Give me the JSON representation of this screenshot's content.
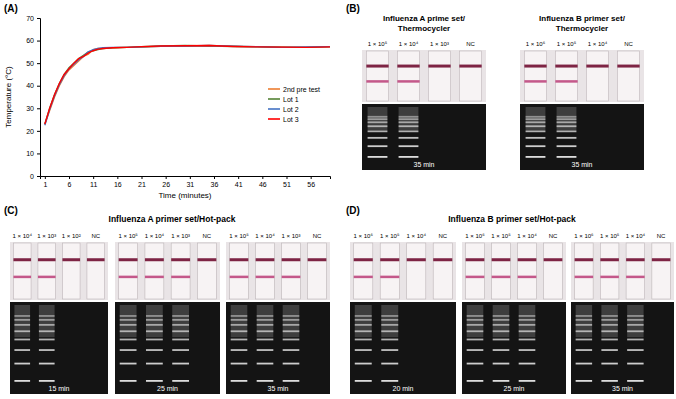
{
  "chart_data": {
    "type": "line",
    "title": "(A)",
    "x_label": "Time (minutes)",
    "y_label": "Temperature (°C)",
    "x": [
      1,
      2,
      3,
      4,
      5,
      6,
      7,
      8,
      9,
      10,
      11,
      12,
      13,
      15,
      18,
      21,
      25,
      30,
      35,
      40,
      45,
      50,
      55,
      60
    ],
    "xlim": [
      0,
      60
    ],
    "xticks": [
      1,
      6,
      11,
      16,
      21,
      26,
      31,
      36,
      41,
      46,
      51,
      56
    ],
    "ylim": [
      0,
      70
    ],
    "yticks": [
      0,
      10,
      20,
      30,
      40,
      50,
      60,
      70
    ],
    "grid": false,
    "legend": "right",
    "series": [
      {
        "name": "2nd pre test",
        "color": "#ed7d31",
        "values": [
          23,
          29,
          35,
          40,
          44,
          47,
          49,
          51,
          53,
          54,
          56,
          56.5,
          56.5,
          56.8,
          57,
          57,
          57.5,
          57.5,
          57.8,
          57.5,
          57.3,
          57.2,
          57,
          57.2
        ]
      },
      {
        "name": "Lot 1",
        "color": "#548235",
        "values": [
          23,
          30,
          36,
          41,
          45,
          48,
          50,
          52,
          53.5,
          55,
          55.5,
          56,
          56.5,
          56.8,
          57,
          57.3,
          57.6,
          57.8,
          57.6,
          57.4,
          57.2,
          57,
          57,
          57.3
        ]
      },
      {
        "name": "Lot 2",
        "color": "#4472c4",
        "values": [
          22.5,
          29.5,
          35.5,
          40.5,
          44.5,
          47.5,
          49.5,
          51.5,
          53,
          55,
          56,
          56.5,
          56.8,
          57,
          57,
          57.2,
          57.5,
          57.6,
          57.8,
          57.5,
          57.3,
          57,
          57.2,
          57.3
        ]
      },
      {
        "name": "Lot 3",
        "color": "#ff0000",
        "values": [
          23,
          30,
          36,
          41,
          45,
          47.5,
          50,
          52,
          53,
          54.5,
          55.5,
          56.2,
          56.5,
          56.8,
          57,
          57.3,
          57.6,
          57.7,
          57.8,
          57.4,
          57.2,
          57.1,
          57,
          57.2
        ]
      }
    ]
  },
  "panels": [
    {
      "label": "(B)",
      "groups": [
        {
          "title": [
            "Influenza A prime set/",
            "Thermocycler"
          ],
          "time": "35 min",
          "lanes": [
            {
              "label": "1 × 10⁵",
              "positive": true
            },
            {
              "label": "1 × 10⁴",
              "positive": true
            },
            {
              "label": "1 × 10³",
              "positive": false
            },
            {
              "label": "NC",
              "positive": false
            }
          ]
        },
        {
          "title": [
            "Influenza B primer set/",
            "Thermocycler"
          ],
          "time": "35 min",
          "lanes": [
            {
              "label": "1 × 10⁶",
              "positive": true
            },
            {
              "label": "1 × 10⁵",
              "positive": true
            },
            {
              "label": "1 × 10⁴",
              "positive": false
            },
            {
              "label": "NC",
              "positive": false
            }
          ]
        }
      ]
    },
    {
      "label": "(C)",
      "title": "Influenza A primer set/Hot-pack",
      "groups": [
        {
          "time": "15 min",
          "lanes": [
            {
              "label": "1 × 10⁴",
              "positive": true
            },
            {
              "label": "1 × 10³",
              "positive": true
            },
            {
              "label": "1 × 10²",
              "positive": false
            },
            {
              "label": "NC",
              "positive": false
            }
          ]
        },
        {
          "time": "25 min",
          "lanes": [
            {
              "label": "1 × 10⁵",
              "positive": true
            },
            {
              "label": "1 × 10⁴",
              "positive": true
            },
            {
              "label": "1 × 10³",
              "positive": true
            },
            {
              "label": "NC",
              "positive": false
            }
          ]
        },
        {
          "time": "35 min",
          "lanes": [
            {
              "label": "1 × 10⁵",
              "positive": true
            },
            {
              "label": "1 × 10⁴",
              "positive": true
            },
            {
              "label": "1 × 10³",
              "positive": true
            },
            {
              "label": "NC",
              "positive": false
            }
          ]
        }
      ]
    },
    {
      "label": "(D)",
      "title": "Influenza B primer set/Hot-pack",
      "groups": [
        {
          "time": "20 min",
          "lanes": [
            {
              "label": "1 × 10⁶",
              "positive": true
            },
            {
              "label": "1 × 10⁵",
              "positive": true
            },
            {
              "label": "1 × 10⁴",
              "positive": false
            },
            {
              "label": "NC",
              "positive": false
            }
          ]
        },
        {
          "time": "25 min",
          "lanes": [
            {
              "label": "1 × 10⁶",
              "positive": true
            },
            {
              "label": "1 × 10⁵",
              "positive": true
            },
            {
              "label": "1 × 10⁴",
              "positive": true
            },
            {
              "label": "NC",
              "positive": false
            }
          ]
        },
        {
          "time": "35 min",
          "lanes": [
            {
              "label": "1 × 10⁶",
              "positive": true
            },
            {
              "label": "1 × 10⁵",
              "positive": true
            },
            {
              "label": "1 × 10⁴",
              "positive": true
            },
            {
              "label": "NC",
              "positive": false
            }
          ]
        }
      ]
    }
  ]
}
